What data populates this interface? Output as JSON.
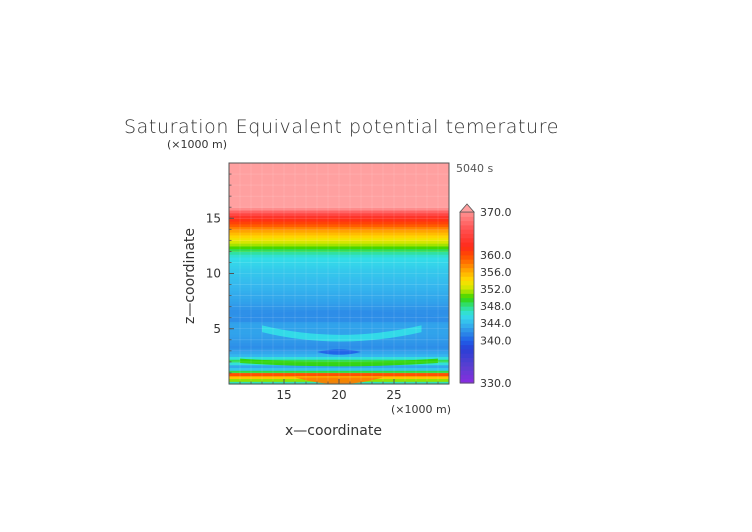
{
  "chart_data": {
    "type": "heatmap",
    "title": "Saturation Equivalent potential temerature",
    "time_label": "5040 s",
    "xlabel": "x—coordinate",
    "ylabel": "z—coordinate",
    "x_unit": "(×1000 m)",
    "y_unit": "(×1000 m)",
    "xlim": [
      10,
      30
    ],
    "ylim": [
      0,
      20
    ],
    "x_ticks": [
      15,
      20,
      25
    ],
    "y_ticks": [
      5,
      10,
      15
    ],
    "colorbar": {
      "min": 330,
      "max": 370,
      "labels": [
        "370.0",
        "360.0",
        "356.0",
        "352.0",
        "348.0",
        "344.0",
        "340.0",
        "330.0"
      ],
      "label_values": [
        370,
        360,
        356,
        352,
        348,
        344,
        340,
        330
      ],
      "extend_top": true
    },
    "vertical_profile": [
      {
        "z": 0.0,
        "value": 345
      },
      {
        "z": 0.6,
        "value": 355
      },
      {
        "z": 0.9,
        "value": 358
      },
      {
        "z": 1.2,
        "value": 346
      },
      {
        "z": 1.6,
        "value": 343
      },
      {
        "z": 2.1,
        "value": 349
      },
      {
        "z": 2.6,
        "value": 344
      },
      {
        "z": 3.3,
        "value": 342
      },
      {
        "z": 4.5,
        "value": 343
      },
      {
        "z": 5.5,
        "value": 343
      },
      {
        "z": 6.5,
        "value": 342
      },
      {
        "z": 7.5,
        "value": 343
      },
      {
        "z": 9.0,
        "value": 344
      },
      {
        "z": 10.5,
        "value": 345
      },
      {
        "z": 11.5,
        "value": 346
      },
      {
        "z": 12.0,
        "value": 348
      },
      {
        "z": 12.5,
        "value": 351
      },
      {
        "z": 13.0,
        "value": 353
      },
      {
        "z": 13.5,
        "value": 355
      },
      {
        "z": 14.0,
        "value": 357
      },
      {
        "z": 14.5,
        "value": 360
      },
      {
        "z": 15.0,
        "value": 362
      },
      {
        "z": 15.5,
        "value": 366
      },
      {
        "z": 16.0,
        "value": 371
      },
      {
        "z": 20.0,
        "value": 371
      }
    ]
  }
}
